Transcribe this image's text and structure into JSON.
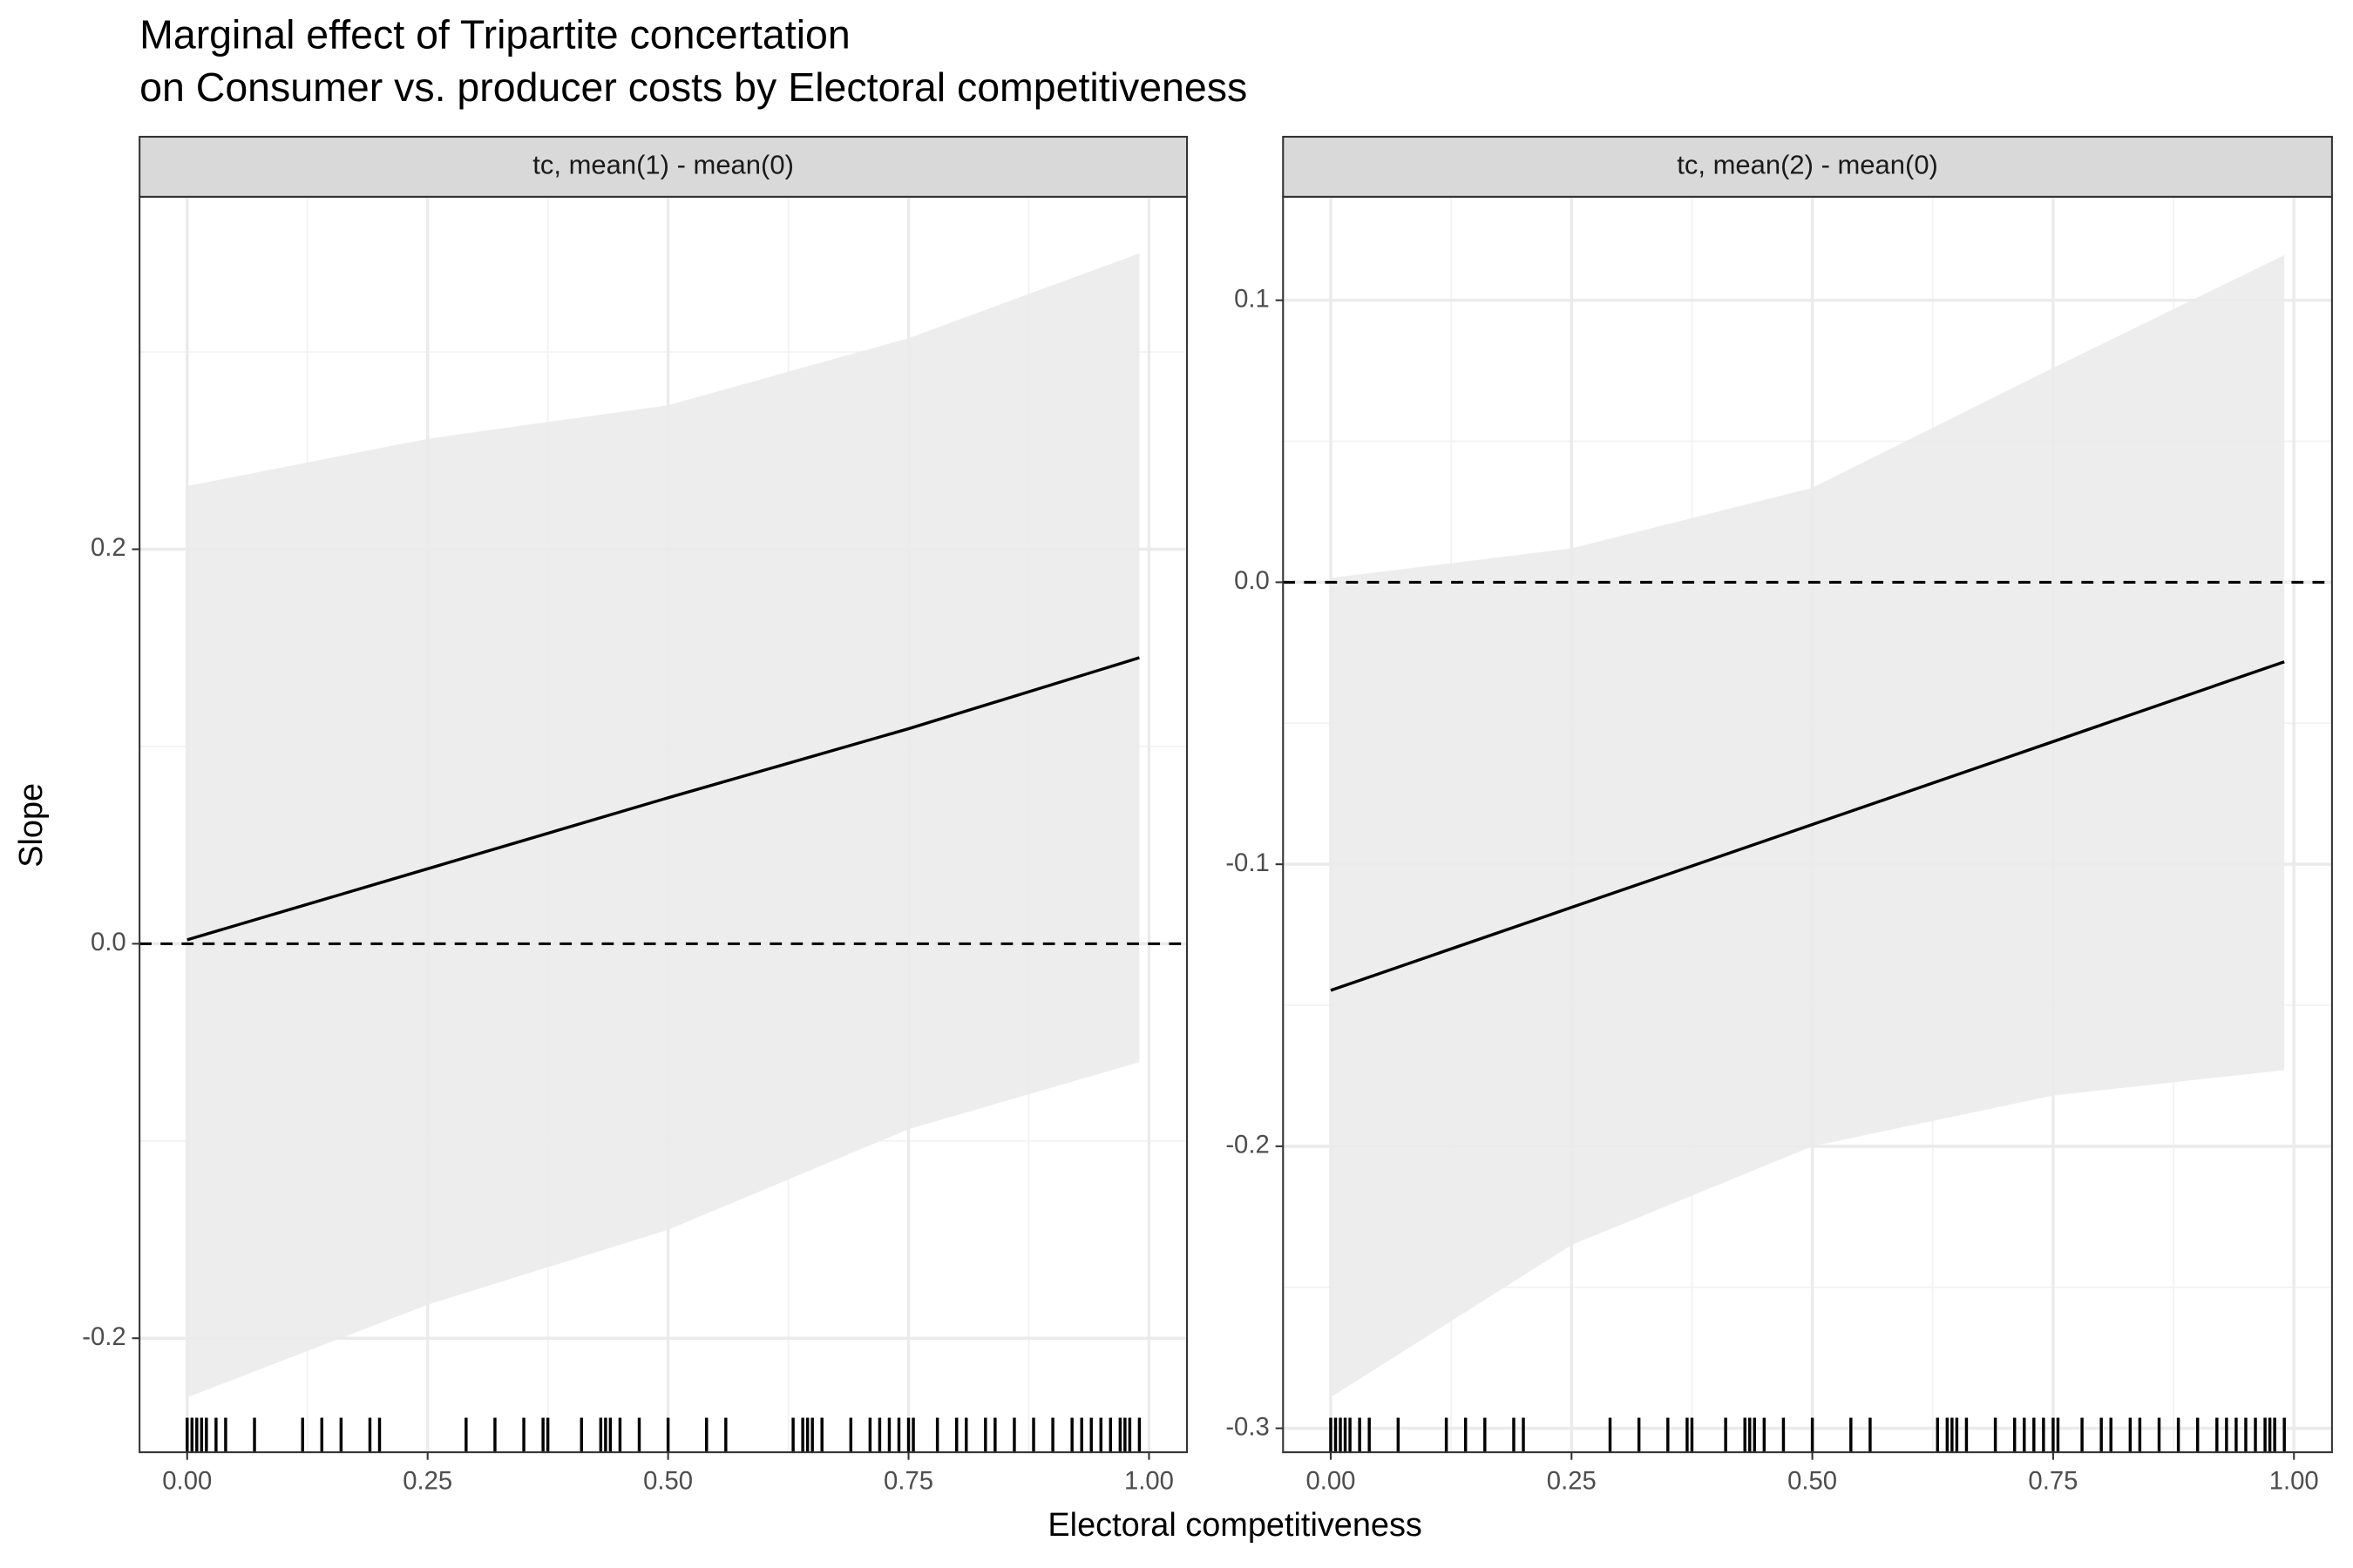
{
  "figure": {
    "title": [
      "Marginal effect of Tripartite concertation",
      "on Consumer vs. producer costs by Electoral competitiveness"
    ],
    "x_label": "Electoral competitiveness",
    "y_label": "Slope"
  },
  "chart_data": [
    {
      "type": "line",
      "strip": "tc, mean(1) - mean(0)",
      "x": [
        0,
        0.25,
        0.5,
        0.75,
        0.99
      ],
      "values": [
        0.002,
        0.038,
        0.074,
        0.109,
        0.145
      ],
      "lower": [
        -0.23,
        -0.183,
        -0.145,
        -0.094,
        -0.06
      ],
      "upper": [
        0.232,
        0.256,
        0.273,
        0.307,
        0.35
      ],
      "hline": 0,
      "rug": [
        0,
        0.005,
        0.01,
        0.015,
        0.02,
        0.03,
        0.04,
        0.07,
        0.12,
        0.14,
        0.16,
        0.19,
        0.2,
        0.29,
        0.32,
        0.35,
        0.37,
        0.375,
        0.41,
        0.43,
        0.435,
        0.44,
        0.45,
        0.47,
        0.5,
        0.54,
        0.56,
        0.63,
        0.64,
        0.645,
        0.65,
        0.66,
        0.69,
        0.71,
        0.72,
        0.73,
        0.74,
        0.75,
        0.755,
        0.78,
        0.8,
        0.81,
        0.83,
        0.84,
        0.86,
        0.88,
        0.9,
        0.92,
        0.93,
        0.94,
        0.95,
        0.96,
        0.97,
        0.975,
        0.98,
        0.99
      ],
      "xlim": [
        -0.0495,
        1.0395
      ],
      "ylim": [
        -0.2578,
        0.3787
      ],
      "xticks": [
        {
          "value": 0,
          "label": "0.00"
        },
        {
          "value": 0.25,
          "label": "0.25"
        },
        {
          "value": 0.5,
          "label": "0.50"
        },
        {
          "value": 0.75,
          "label": "0.75"
        },
        {
          "value": 1,
          "label": "1.00"
        }
      ],
      "yticks": [
        -0.2,
        {
          "value": 0,
          "label": "0.0"
        },
        0.2
      ],
      "xminor": [
        0.125,
        0.375,
        0.625,
        0.875
      ],
      "yminor": [
        -0.1,
        0.1,
        0.3
      ],
      "color": "#000000",
      "band_color": "#ebebeb",
      "grid": true
    },
    {
      "type": "line",
      "strip": "tc, mean(2) - mean(0)",
      "x": [
        0,
        0.25,
        0.5,
        0.75,
        0.99
      ],
      "values": [
        -0.1447,
        -0.1153,
        -0.0859,
        -0.0565,
        -0.0282
      ],
      "lower": [
        -0.289,
        -0.235,
        -0.2,
        -0.182,
        -0.173
      ],
      "upper": [
        0.0015,
        0.012,
        0.0335,
        0.076,
        0.116
      ],
      "hline": 0,
      "rug": [
        0,
        0.005,
        0.01,
        0.015,
        0.02,
        0.03,
        0.04,
        0.07,
        0.12,
        0.14,
        0.16,
        0.19,
        0.2,
        0.29,
        0.32,
        0.35,
        0.37,
        0.375,
        0.41,
        0.43,
        0.435,
        0.44,
        0.45,
        0.47,
        0.5,
        0.54,
        0.56,
        0.63,
        0.64,
        0.645,
        0.65,
        0.66,
        0.69,
        0.71,
        0.72,
        0.73,
        0.74,
        0.75,
        0.755,
        0.78,
        0.8,
        0.81,
        0.83,
        0.84,
        0.86,
        0.88,
        0.9,
        0.92,
        0.93,
        0.94,
        0.95,
        0.96,
        0.97,
        0.975,
        0.98,
        0.99
      ],
      "xlim": [
        -0.0495,
        1.0395
      ],
      "ylim": [
        -0.3085,
        0.1367
      ],
      "xticks": [
        {
          "value": 0,
          "label": "0.00"
        },
        {
          "value": 0.25,
          "label": "0.25"
        },
        {
          "value": 0.5,
          "label": "0.50"
        },
        {
          "value": 0.75,
          "label": "0.75"
        },
        {
          "value": 1,
          "label": "1.00"
        }
      ],
      "yticks": [
        -0.3,
        -0.2,
        -0.1,
        {
          "value": 0,
          "label": "0.0"
        },
        0.1
      ],
      "xminor": [
        0.125,
        0.375,
        0.625,
        0.875
      ],
      "yminor": [
        -0.25,
        -0.15,
        -0.05,
        0.05
      ],
      "color": "#000000",
      "band_color": "#ebebeb",
      "grid": true
    }
  ]
}
